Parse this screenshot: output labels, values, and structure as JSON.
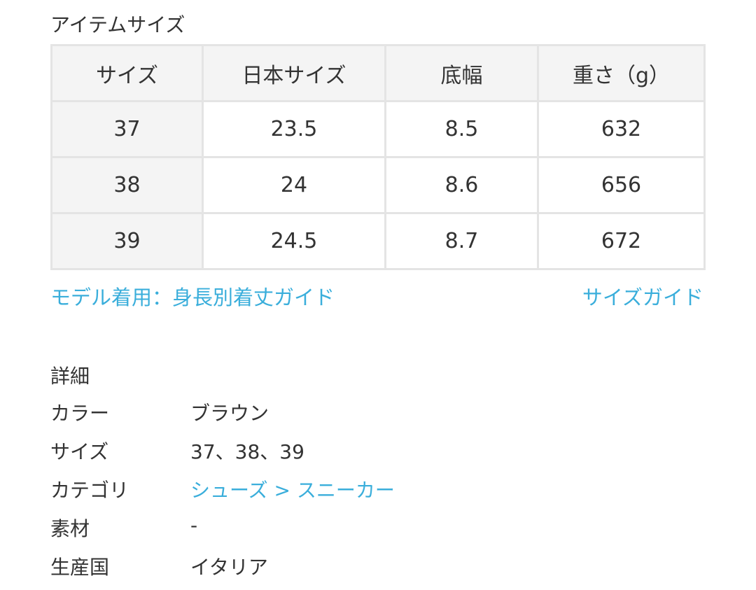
{
  "item_size": {
    "title": "アイテムサイズ",
    "headers": [
      "サイズ",
      "日本サイズ",
      "底幅",
      "重さ（g）"
    ],
    "rows": [
      [
        "37",
        "23.5",
        "8.5",
        "632"
      ],
      [
        "38",
        "24",
        "8.6",
        "656"
      ],
      [
        "39",
        "24.5",
        "8.7",
        "672"
      ]
    ],
    "model_guide_link": "モデル着用：身長別着丈ガイド",
    "size_guide_link": "サイズガイド"
  },
  "details": {
    "title": "詳細",
    "rows": [
      {
        "label": "カラー",
        "value": "ブラウン"
      },
      {
        "label": "サイズ",
        "value": "37、38、39"
      },
      {
        "label": "カテゴリ",
        "value": "シューズ > スニーカー",
        "link": true
      },
      {
        "label": "素材",
        "value": "-"
      },
      {
        "label": "生産国",
        "value": "イタリア"
      }
    ]
  },
  "colors": {
    "link": "#3aaedb",
    "header_bg": "#f4f4f4",
    "border": "#e4e4e4"
  }
}
